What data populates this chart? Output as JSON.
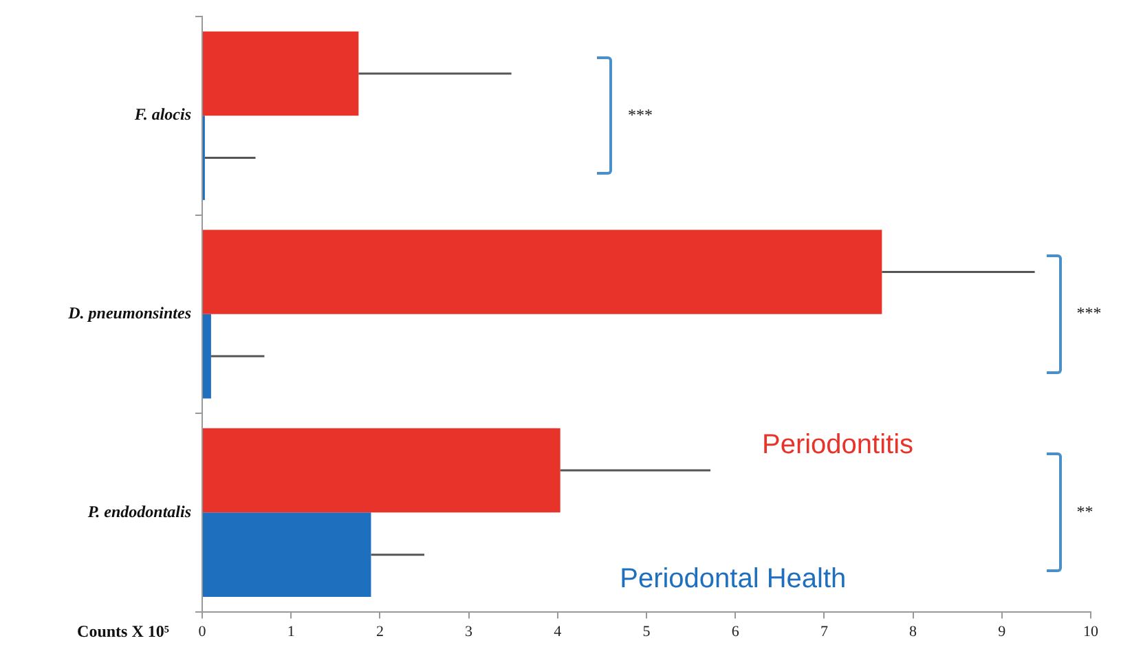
{
  "chart_data": {
    "type": "bar",
    "orientation": "horizontal",
    "xlabel": "Counts X 10⁵",
    "categories": [
      "F. alocis",
      "D. pneumonsintes",
      "P. endodontalis"
    ],
    "series": [
      {
        "name": "Periodontitis",
        "color": "#e8332b",
        "values": [
          1.76,
          7.65,
          4.03
        ],
        "errors": [
          [
            1.76,
            3.48
          ],
          [
            7.65,
            9.37
          ],
          [
            4.03,
            5.72
          ]
        ]
      },
      {
        "name": "Periodontal Health",
        "color": "#1f6fbf",
        "values": [
          0.03,
          0.1,
          1.9
        ],
        "errors": [
          [
            0.03,
            0.6
          ],
          [
            0.1,
            0.7
          ],
          [
            1.9,
            2.5
          ]
        ]
      }
    ],
    "xlim": [
      0,
      10
    ],
    "xticks": [
      0,
      1,
      2,
      3,
      4,
      5,
      6,
      7,
      8,
      9,
      10
    ],
    "annotations": [
      "***",
      "***",
      "**"
    ],
    "grid": false,
    "legend": false
  }
}
